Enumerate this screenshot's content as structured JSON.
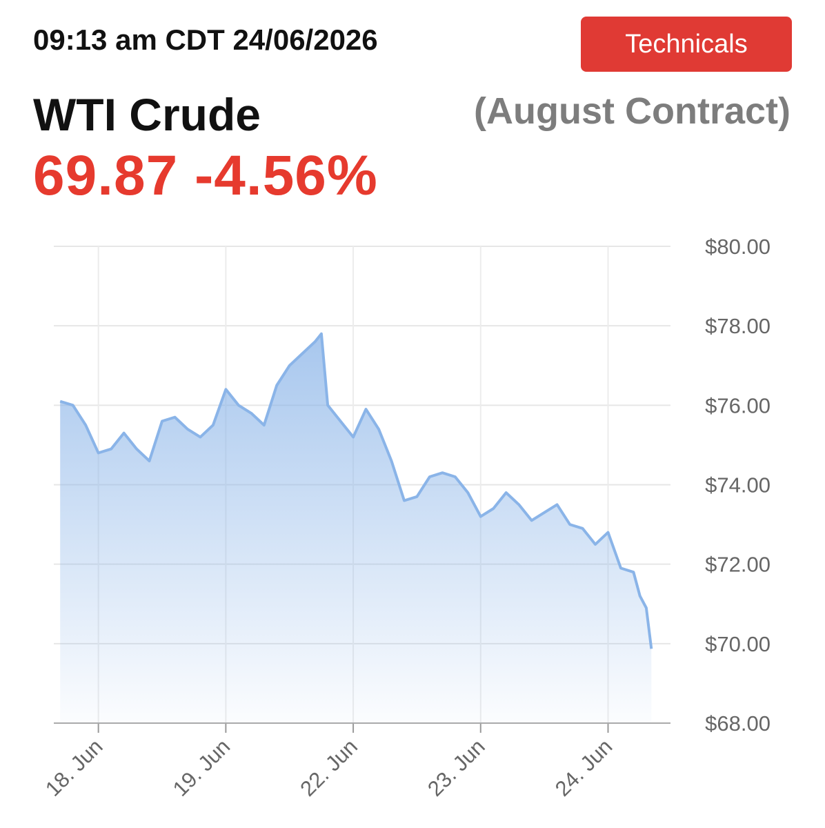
{
  "header": {
    "timestamp": "09:13 am CDT 24/06/2026",
    "button": "Technicals",
    "name": "WTI Crude",
    "contract": "(August Contract)",
    "price": "69.87",
    "change": "-4.56%"
  },
  "chart_data": {
    "type": "area",
    "color": "#8ab4e8",
    "x": [
      -0.3,
      -0.2,
      -0.1,
      0.0,
      0.1,
      0.2,
      0.3,
      0.4,
      0.5,
      0.6,
      0.7,
      0.8,
      0.9,
      1.0,
      1.1,
      1.2,
      1.3,
      1.4,
      1.5,
      1.6,
      1.7,
      1.75,
      1.8,
      1.9,
      2.0,
      2.1,
      2.2,
      2.3,
      2.4,
      2.5,
      2.6,
      2.7,
      2.8,
      2.9,
      3.0,
      3.1,
      3.2,
      3.3,
      3.4,
      3.5,
      3.6,
      3.7,
      3.8,
      3.9,
      4.0,
      4.1,
      4.2,
      4.25,
      4.3,
      4.34
    ],
    "values": [
      76.1,
      76.0,
      75.5,
      74.8,
      74.9,
      75.3,
      74.9,
      74.6,
      75.6,
      75.7,
      75.4,
      75.2,
      75.5,
      76.4,
      76.0,
      75.8,
      75.5,
      76.5,
      77.0,
      77.3,
      77.6,
      77.8,
      76.0,
      75.6,
      75.2,
      75.9,
      75.4,
      74.6,
      73.6,
      73.7,
      74.2,
      74.3,
      74.2,
      73.8,
      73.2,
      73.4,
      73.8,
      73.5,
      73.1,
      73.3,
      73.5,
      73.0,
      72.9,
      72.5,
      72.8,
      71.9,
      71.8,
      71.2,
      70.9,
      69.87
    ],
    "xlim": [
      -0.35,
      4.49
    ],
    "xticks": [
      {
        "value": 0,
        "label": "18. Jun"
      },
      {
        "value": 1,
        "label": "19. Jun"
      },
      {
        "value": 2,
        "label": "22. Jun"
      },
      {
        "value": 3,
        "label": "23. Jun"
      },
      {
        "value": 4,
        "label": "24. Jun"
      }
    ],
    "ylim": [
      68,
      80
    ],
    "yticks": [
      {
        "value": 68,
        "label": "$68.00"
      },
      {
        "value": 70,
        "label": "$70.00"
      },
      {
        "value": 72,
        "label": "$72.00"
      },
      {
        "value": 74,
        "label": "$74.00"
      },
      {
        "value": 76,
        "label": "$76.00"
      },
      {
        "value": 78,
        "label": "$78.00"
      },
      {
        "value": 80,
        "label": "$80.00"
      }
    ],
    "grid": true
  }
}
